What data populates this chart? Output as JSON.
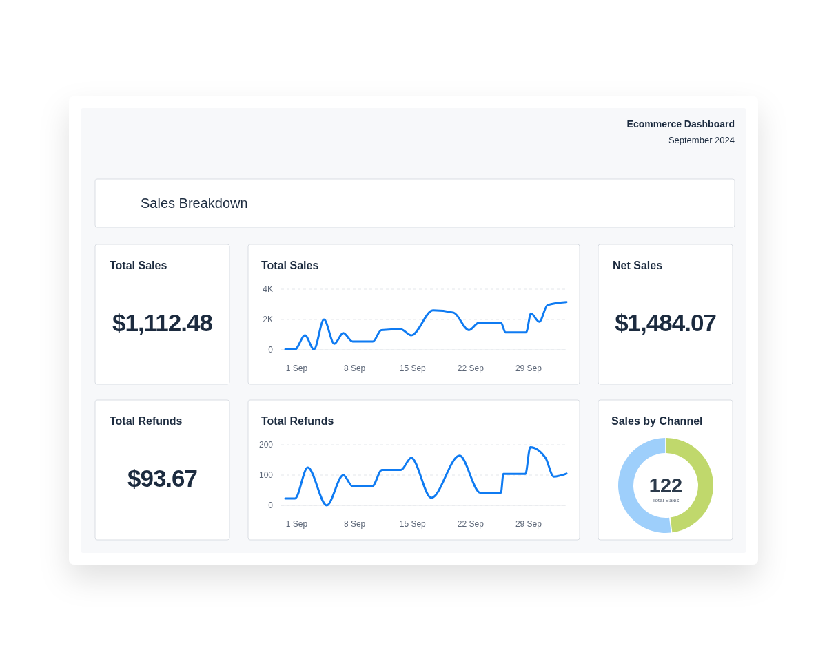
{
  "chart_data": [
    {
      "type": "other",
      "title": "Ecommerce Dashboard",
      "subtitle": "September 2024"
    },
    {
      "type": "other",
      "title": "Sales Breakdown"
    },
    {
      "type": "other",
      "title": "Total Sales",
      "annotations": [
        "$1,112.48"
      ]
    },
    {
      "type": "line",
      "title": "Total Sales",
      "x": [
        "2024-08-30T15:00",
        "2024-08-31T19:00",
        "2024-09-02T00:00",
        "2024-09-03T02:00",
        "2024-09-04T07:00",
        "2024-09-05T13:00",
        "2024-09-06T15:00",
        "2024-09-07T18:00",
        "2024-09-10T05:00",
        "2024-09-11T05:00",
        "2024-09-13T14:00",
        "2024-09-14T20:00",
        "2024-09-17T11:00",
        "2024-09-19T23:00",
        "2024-09-21T19:00",
        "2024-09-23T01:00",
        "2024-09-25T16:00",
        "2024-09-26T05:00",
        "2024-09-28T17:00",
        "2024-09-29T07:00",
        "2024-09-30T07:00",
        "2024-10-01T07:00",
        "2024-10-03T14:00"
      ],
      "series": [
        {
          "color": "#0f7bf2",
          "values": [
            30,
            30,
            950,
            30,
            2000,
            400,
            1100,
            550,
            550,
            1300,
            1350,
            950,
            2600,
            2450,
            1300,
            1800,
            1800,
            1150,
            1150,
            2400,
            1850,
            2950,
            3150
          ]
        }
      ],
      "xlim": [
        "2024-08-30T03:00",
        "2024-10-03T14:00"
      ],
      "xticks": [
        {
          "value": "2024-09-01",
          "label": "1 Sep"
        },
        {
          "value": "2024-09-08",
          "label": "8 Sep"
        },
        {
          "value": "2024-09-15",
          "label": "15 Sep"
        },
        {
          "value": "2024-09-22",
          "label": "22 Sep"
        },
        {
          "value": "2024-09-29",
          "label": "29 Sep"
        }
      ],
      "ylim": [
        0,
        4000
      ],
      "yticks": [
        0,
        {
          "value": 2000,
          "label": "2K"
        },
        {
          "value": 4000,
          "label": "4K"
        }
      ],
      "grid": "y"
    },
    {
      "type": "other",
      "title": "Net Sales",
      "annotations": [
        "$1,484.07"
      ]
    },
    {
      "type": "other",
      "title": "Total Refunds",
      "annotations": [
        "$93.67"
      ]
    },
    {
      "type": "line",
      "title": "Total Refunds",
      "x": [
        "2024-08-30T15:00",
        "2024-08-31T19:00",
        "2024-09-02T08:00",
        "2024-09-04T15:00",
        "2024-09-06T15:00",
        "2024-09-07T18:00",
        "2024-09-10T03:00",
        "2024-09-11T07:00",
        "2024-09-13T14:00",
        "2024-09-14T20:00",
        "2024-09-17T06:00",
        "2024-09-20T16:00",
        "2024-09-23T04:00",
        "2024-09-25T16:00",
        "2024-09-25T23:00",
        "2024-09-28T15:00",
        "2024-09-29T05:00",
        "2024-10-01T01:00",
        "2024-10-02T01:00",
        "2024-10-03T14:00"
      ],
      "series": [
        {
          "color": "#0f7bf2",
          "values": [
            23,
            23,
            125,
            0,
            100,
            63,
            63,
            117,
            117,
            157,
            25,
            164,
            42,
            42,
            104,
            104,
            192,
            157,
            95,
            105
          ]
        }
      ],
      "xlim": [
        "2024-08-30T03:00",
        "2024-10-03T14:00"
      ],
      "xticks": [
        {
          "value": "2024-09-01",
          "label": "1 Sep"
        },
        {
          "value": "2024-09-08",
          "label": "8 Sep"
        },
        {
          "value": "2024-09-15",
          "label": "15 Sep"
        },
        {
          "value": "2024-09-22",
          "label": "22 Sep"
        },
        {
          "value": "2024-09-29",
          "label": "29 Sep"
        }
      ],
      "ylim": [
        0,
        200
      ],
      "yticks": [
        0,
        100,
        200
      ],
      "grid": "y"
    },
    {
      "type": "donut",
      "title": "Sales by Channel",
      "categories": [
        null,
        null
      ],
      "values": [
        48,
        52
      ],
      "colors": [
        "#c0d86c",
        "#9ecffb"
      ],
      "annotations": [
        "122",
        "Total Sales"
      ]
    }
  ]
}
